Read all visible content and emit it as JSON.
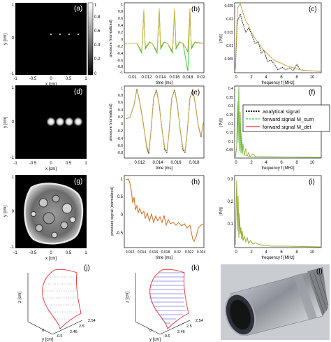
{
  "panels": {
    "a": {
      "letter": "(a)",
      "xlabel": "x [cm]",
      "ylabel": "y [cm]",
      "xticks": [
        "-1",
        "-0.5",
        "0",
        "0.5",
        "1"
      ],
      "yticks": [
        "1",
        "0",
        "-1"
      ],
      "colorbar_ticks": [
        "1",
        "0.8",
        "0.6",
        "0.4",
        "0.2",
        "0"
      ]
    },
    "b": {
      "letter": "(b)",
      "xlabel": "time [ms]",
      "ylabel": "pressure (normalized)",
      "xticks": [
        "0.01",
        "0.012",
        "0.014",
        "0.016",
        "0.018",
        "0.02"
      ],
      "yticks": [
        "1",
        "0.8",
        "0.6",
        "0.4",
        "0.2",
        "0",
        "-0.2",
        "-0.4",
        "-0.6",
        "-0.8",
        "-1"
      ]
    },
    "c": {
      "letter": "(c)",
      "xlabel": "frequency f [MHz]",
      "ylabel": "|P(f)|",
      "xticks": [
        "0",
        "2",
        "4",
        "6",
        "8",
        "10"
      ],
      "yticks": [
        "0.025",
        "0.02",
        "0.015",
        "0.01",
        "0.005"
      ]
    },
    "d": {
      "letter": "(d)",
      "xlabel": "x [cm]",
      "ylabel": "y [cm]",
      "xticks": [
        "-1",
        "-0.5",
        "0",
        "0.5",
        "1"
      ],
      "yticks": [
        "1",
        "0",
        "-1"
      ]
    },
    "e": {
      "letter": "(e)",
      "xlabel": "time [ms]",
      "ylabel": "pressure (normalized)",
      "xticks": [
        "0.012",
        "0.014",
        "0.016",
        "0.018"
      ],
      "yticks": [
        "1",
        "0.8",
        "0.6",
        "0.4",
        "0.2",
        "0",
        "-0.2",
        "-0.4",
        "-0.6",
        "-0.8"
      ]
    },
    "f": {
      "letter": "(f)",
      "xlabel": "frequency f [MHz]",
      "ylabel": "|P(f)|",
      "xticks": [
        "0",
        "2",
        "4",
        "6",
        "8",
        "10"
      ],
      "yticks": [
        "0.4",
        "0.35",
        "0.3",
        "0.25",
        "0.2",
        "0.15",
        "0.1",
        "0.05"
      ]
    },
    "g": {
      "letter": "(g)",
      "xlabel": "x [cm]",
      "ylabel": "y [cm]",
      "xticks": [
        "-1",
        "-0.5",
        "0",
        "0.5",
        "1"
      ],
      "yticks": [
        "1",
        "0",
        "-1"
      ]
    },
    "h": {
      "letter": "(h)",
      "xlabel": "time [ms]",
      "ylabel": "pressure signal (normalized)",
      "xticks": [
        "0.012",
        "0.014",
        "0.016",
        "0.018",
        "0.02",
        "0.022",
        "0.024"
      ],
      "yticks": [
        "1",
        "0.5",
        "0",
        "-0.5"
      ]
    },
    "i": {
      "letter": "(i)",
      "xlabel": "frequency f [MHz]",
      "ylabel": "|P(f)|",
      "xticks": [
        "0",
        "2",
        "4",
        "6",
        "8",
        "10"
      ],
      "yticks": [
        "0.3",
        "0.2",
        "0.1"
      ]
    },
    "j": {
      "letter": "(j)",
      "xlabel": "y [cm]",
      "ylabel": "z [cm]",
      "xticks": [
        "0",
        "-0.5"
      ],
      "depth_ticks": [
        "2.54",
        "2.5",
        "2.46"
      ]
    },
    "k": {
      "letter": "(k)",
      "xlabel": "y [cm]",
      "ylabel": "z [cm]",
      "xticks": [
        "0",
        "-0.5"
      ],
      "depth_ticks": [
        "2.54",
        "2.5",
        "2.46"
      ]
    },
    "l": {
      "letter": "(l)"
    }
  },
  "legend": {
    "analytical": "analytical signal",
    "msum": "forward signal M_sum",
    "mdet": "forward signal M_det"
  },
  "colors": {
    "analytical": "#000000",
    "msum": "#33cc33",
    "mdet": "#e03030",
    "fill": "#b8a04a",
    "mesh": "#e03030",
    "lines": "#3a3ad0"
  }
}
